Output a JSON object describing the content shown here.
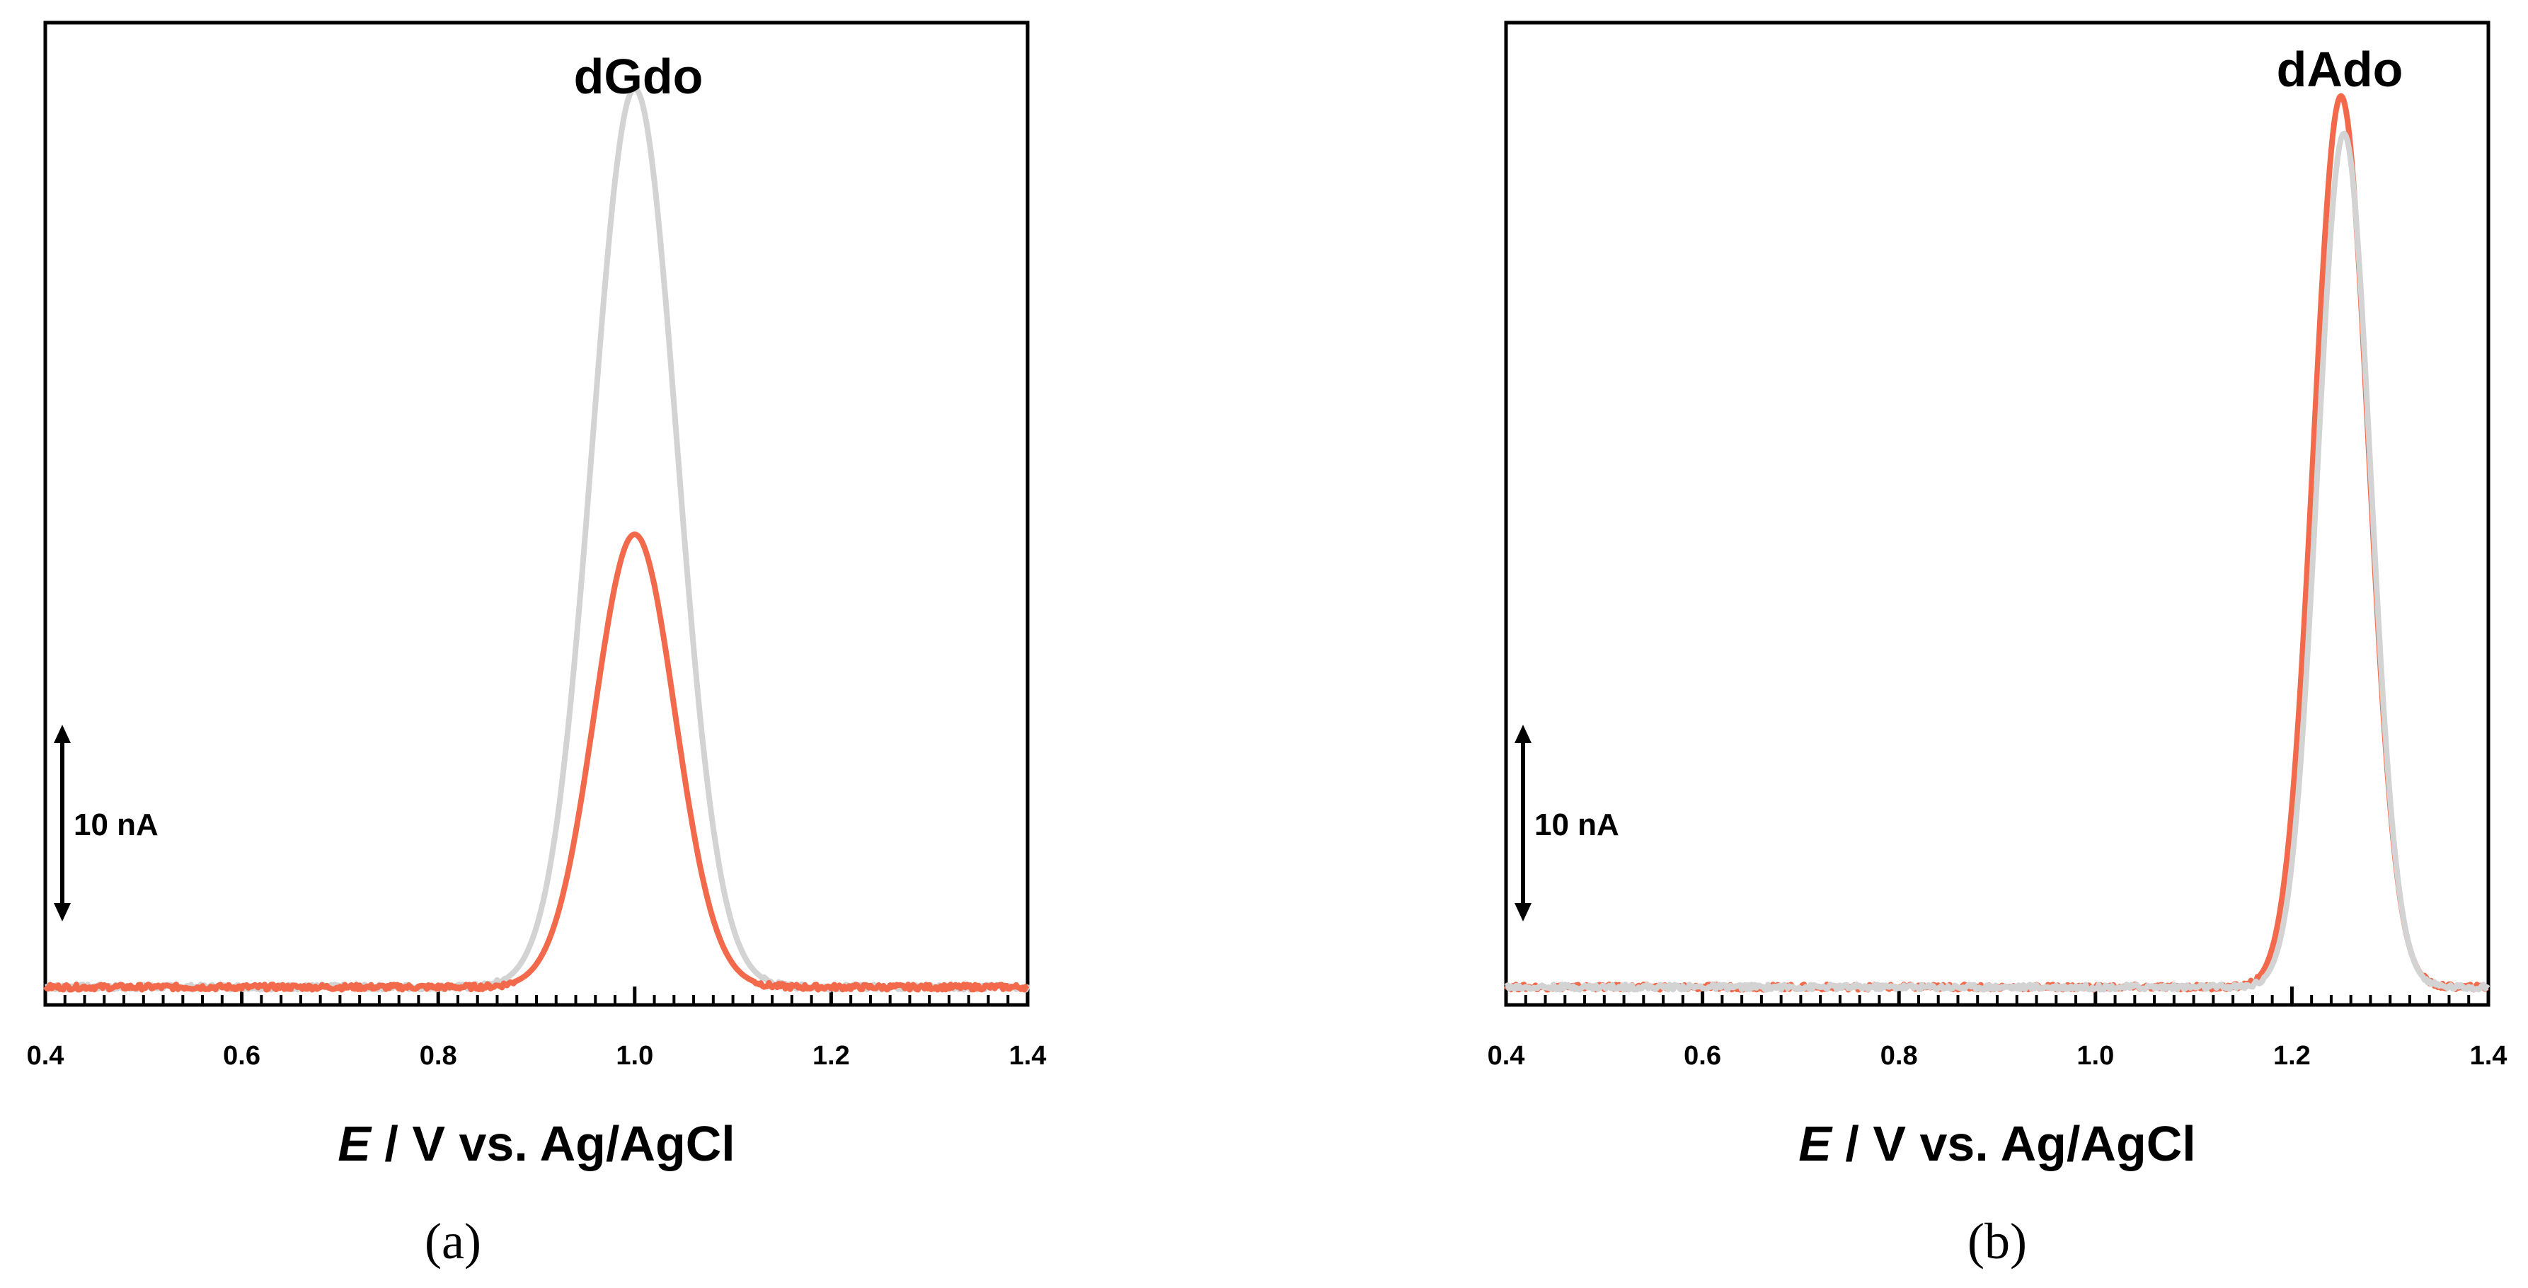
{
  "chart_data": [
    {
      "type": "line",
      "panel_label": "(a)",
      "title": "dGdo",
      "xlabel_italic": "E",
      "xlabel_rest": " / V vs. Ag/AgCl",
      "xlim": [
        0.4,
        1.4
      ],
      "x_ticks": [
        "0.4",
        "0.6",
        "0.8",
        "1.0",
        "1.2",
        "1.4"
      ],
      "x_tick_values": [
        0.4,
        0.6,
        0.8,
        1.0,
        1.2,
        1.4
      ],
      "ylim": [
        -2,
        108
      ],
      "scale_bar": {
        "label": "10 nA",
        "value_nA": 10
      },
      "series": [
        {
          "name": "gray",
          "color": "#d3d3d3",
          "baseline": 0,
          "peak_x": 1.0,
          "peak_height": 100.6,
          "sigma": 0.043,
          "skew": 0.0
        },
        {
          "name": "orange",
          "color": "#f26a4b",
          "baseline": 0,
          "peak_x": 1.0,
          "peak_height": 50.7,
          "sigma": 0.041,
          "skew": 0.0
        }
      ]
    },
    {
      "type": "line",
      "panel_label": "(b)",
      "title": "dAdo",
      "xlabel_italic": "E",
      "xlabel_rest": " / V vs. Ag/AgCl",
      "xlim": [
        0.4,
        1.4
      ],
      "x_ticks": [
        "0.4",
        "0.6",
        "0.8",
        "1.0",
        "1.2",
        "1.4"
      ],
      "x_tick_values": [
        0.4,
        0.6,
        0.8,
        1.0,
        1.2,
        1.4
      ],
      "ylim": [
        -2,
        108
      ],
      "scale_bar": {
        "label": "10 nA",
        "value_nA": 10
      },
      "series": [
        {
          "name": "orange",
          "color": "#f26a4b",
          "baseline": 0,
          "peak_x": 1.25,
          "peak_height": 99.8,
          "sigma": 0.028,
          "skew": 0.0
        },
        {
          "name": "gray",
          "color": "#d3d3d3",
          "baseline": 0,
          "peak_x": 1.253,
          "peak_height": 95.6,
          "sigma": 0.027,
          "skew": 0.0
        }
      ]
    }
  ]
}
